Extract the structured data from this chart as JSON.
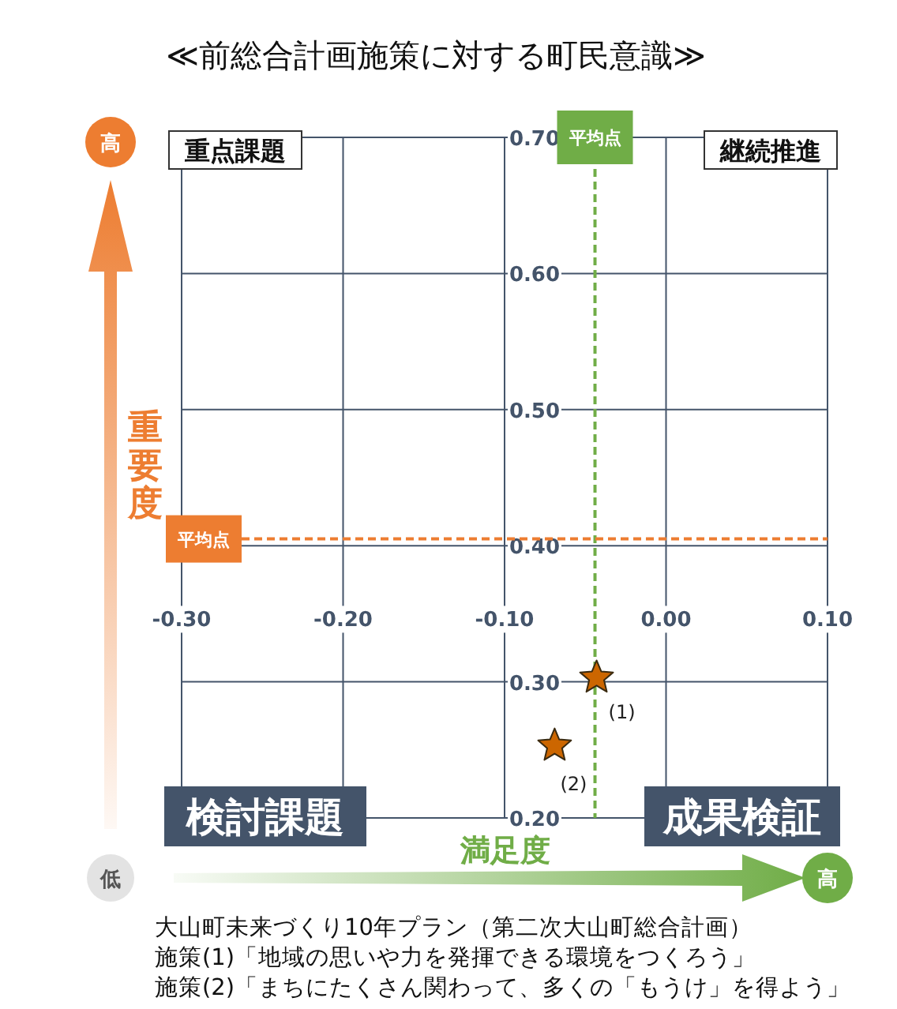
{
  "chart_data": {
    "type": "scatter",
    "title": "≪前総合計画施策に対する町民意識≫",
    "xlabel": "満足度",
    "ylabel": "重要度",
    "x": [
      -0.043,
      -0.069
    ],
    "values": [
      0.303,
      0.253
    ],
    "color": "#cc6600",
    "marker": "star",
    "xlim": [
      -0.3,
      0.1
    ],
    "xticks": [
      {
        "value": -0.3,
        "label": "-0.30"
      },
      {
        "value": -0.2,
        "label": "-0.20"
      },
      {
        "value": -0.1,
        "label": "-0.10"
      },
      {
        "value": 0,
        "label": "0.00"
      },
      {
        "value": 0.1,
        "label": "0.10"
      }
    ],
    "ylim": [
      0.2,
      0.7
    ],
    "yticks": [
      {
        "value": 0.2,
        "label": "0.20"
      },
      {
        "value": 0.3,
        "label": "0.30"
      },
      {
        "value": 0.4,
        "label": "0.40"
      },
      {
        "value": 0.5,
        "label": "0.50"
      },
      {
        "value": 0.6,
        "label": "0.60"
      },
      {
        "value": 0.7,
        "label": "0.70"
      }
    ],
    "grid": true,
    "ref_lines": [
      {
        "axis": "x",
        "value": -0.044,
        "label": "平均点",
        "color": "#70ad47",
        "line_style": "dashed"
      },
      {
        "axis": "y",
        "value": 0.405,
        "label": "平均点",
        "color": "#ed7d31",
        "line_style": "dashed"
      }
    ],
    "annotations": [
      {
        "text": "(1)",
        "x": -0.043,
        "y": 0.303
      },
      {
        "text": "(2)",
        "x": -0.069,
        "y": 0.253
      },
      "重点課題",
      "継続推進",
      "検討課題",
      "成果検証",
      "高",
      "低",
      "高",
      "大山町未来づくり10年プラン（第二次大山町総合計画）",
      "施策(1)「地域の思いや力を発揮できる環境をつくろう」",
      "施策(2)「まちにたくさん関わって、多くの「もうけ」を得よう」"
    ]
  }
}
